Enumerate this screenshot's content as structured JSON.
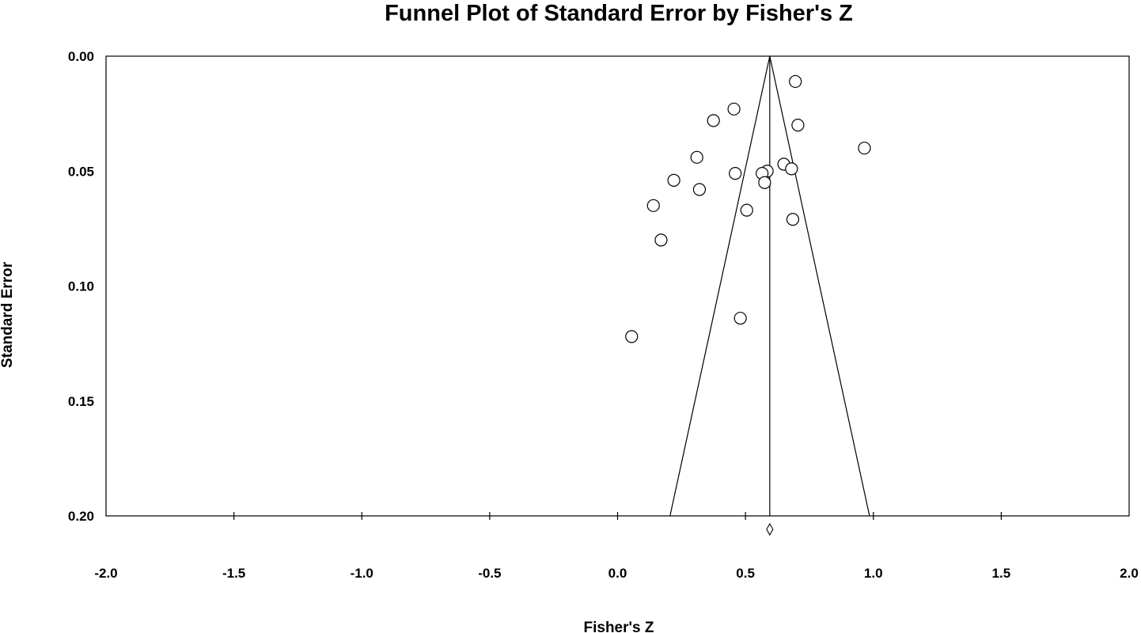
{
  "chart_data": {
    "type": "scatter",
    "title": "Funnel Plot of Standard Error by Fisher's Z",
    "xlabel": "Fisher's Z",
    "ylabel": "Standard Error",
    "xlim": [
      -2.0,
      2.0
    ],
    "ylim": [
      0.0,
      0.2
    ],
    "y_inverted": true,
    "x_ticks": [
      -2.0,
      -1.5,
      -1.0,
      -0.5,
      0.0,
      0.5,
      1.0,
      1.5,
      2.0
    ],
    "x_tick_labels": [
      "-2.0",
      "-1.5",
      "-1.0",
      "-0.5",
      "0.0",
      "0.5",
      "1.0",
      "1.5",
      "2.0"
    ],
    "y_ticks": [
      0.0,
      0.05,
      0.1,
      0.15,
      0.2
    ],
    "y_tick_labels": [
      "0.00",
      "0.05",
      "0.10",
      "0.15",
      "0.20"
    ],
    "grid": false,
    "legend": "none",
    "pooled_effect": 0.595,
    "funnel": {
      "apex_se": 0.0,
      "base_se": 0.2,
      "base_x": [
        0.205,
        0.985
      ]
    },
    "summary_marker": {
      "x": 0.595,
      "shape": "diamond"
    },
    "points": [
      {
        "x": 0.695,
        "y": 0.011
      },
      {
        "x": 0.455,
        "y": 0.023
      },
      {
        "x": 0.375,
        "y": 0.028
      },
      {
        "x": 0.705,
        "y": 0.03
      },
      {
        "x": 0.965,
        "y": 0.04
      },
      {
        "x": 0.31,
        "y": 0.044
      },
      {
        "x": 0.65,
        "y": 0.047
      },
      {
        "x": 0.68,
        "y": 0.049
      },
      {
        "x": 0.585,
        "y": 0.05
      },
      {
        "x": 0.46,
        "y": 0.051
      },
      {
        "x": 0.565,
        "y": 0.051
      },
      {
        "x": 0.22,
        "y": 0.054
      },
      {
        "x": 0.575,
        "y": 0.055
      },
      {
        "x": 0.32,
        "y": 0.058
      },
      {
        "x": 0.14,
        "y": 0.065
      },
      {
        "x": 0.505,
        "y": 0.067
      },
      {
        "x": 0.685,
        "y": 0.071
      },
      {
        "x": 0.17,
        "y": 0.08
      },
      {
        "x": 0.48,
        "y": 0.114
      },
      {
        "x": 0.055,
        "y": 0.122
      }
    ]
  }
}
